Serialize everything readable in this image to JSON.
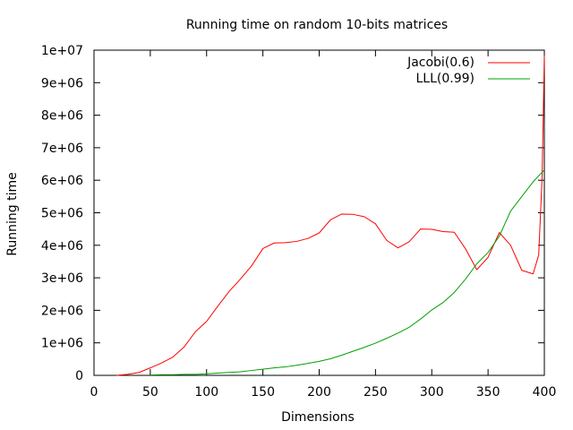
{
  "chart_data": {
    "type": "line",
    "title": "Running time on random 10-bits matrices",
    "xlabel": "Dimensions",
    "ylabel": "Running time",
    "xlim": [
      0,
      400
    ],
    "ylim": [
      0,
      10000000
    ],
    "grid": false,
    "legend_position": "top-right",
    "x_ticks": [
      {
        "value": 0,
        "label": "0"
      },
      {
        "value": 50,
        "label": "50"
      },
      {
        "value": 100,
        "label": "100"
      },
      {
        "value": 150,
        "label": "150"
      },
      {
        "value": 200,
        "label": "200"
      },
      {
        "value": 250,
        "label": "250"
      },
      {
        "value": 300,
        "label": "300"
      },
      {
        "value": 350,
        "label": "350"
      },
      {
        "value": 400,
        "label": "400"
      }
    ],
    "y_ticks": [
      {
        "value": 0,
        "label": "0"
      },
      {
        "value": 1000000,
        "label": "1e+06"
      },
      {
        "value": 2000000,
        "label": "2e+06"
      },
      {
        "value": 3000000,
        "label": "3e+06"
      },
      {
        "value": 4000000,
        "label": "4e+06"
      },
      {
        "value": 5000000,
        "label": "5e+06"
      },
      {
        "value": 6000000,
        "label": "6e+06"
      },
      {
        "value": 7000000,
        "label": "7e+06"
      },
      {
        "value": 8000000,
        "label": "8e+06"
      },
      {
        "value": 9000000,
        "label": "9e+06"
      },
      {
        "value": 10000000,
        "label": "1e+07"
      }
    ],
    "series": [
      {
        "name": "Jacobi(0.6)",
        "color": "#ff0000",
        "points": [
          [
            20,
            0
          ],
          [
            30,
            30000
          ],
          [
            40,
            90000
          ],
          [
            50,
            230000
          ],
          [
            60,
            380000
          ],
          [
            70,
            560000
          ],
          [
            80,
            870000
          ],
          [
            90,
            1340000
          ],
          [
            100,
            1660000
          ],
          [
            110,
            2130000
          ],
          [
            120,
            2580000
          ],
          [
            130,
            2960000
          ],
          [
            140,
            3370000
          ],
          [
            150,
            3900000
          ],
          [
            160,
            4070000
          ],
          [
            170,
            4080000
          ],
          [
            180,
            4120000
          ],
          [
            190,
            4210000
          ],
          [
            200,
            4380000
          ],
          [
            210,
            4780000
          ],
          [
            220,
            4960000
          ],
          [
            230,
            4950000
          ],
          [
            240,
            4880000
          ],
          [
            250,
            4660000
          ],
          [
            260,
            4150000
          ],
          [
            270,
            3920000
          ],
          [
            280,
            4110000
          ],
          [
            290,
            4500000
          ],
          [
            300,
            4490000
          ],
          [
            310,
            4420000
          ],
          [
            320,
            4400000
          ],
          [
            330,
            3890000
          ],
          [
            340,
            3250000
          ],
          [
            350,
            3630000
          ],
          [
            360,
            4390000
          ],
          [
            370,
            4000000
          ],
          [
            380,
            3230000
          ],
          [
            390,
            3120000
          ],
          [
            395,
            3700000
          ],
          [
            398,
            6100000
          ],
          [
            400,
            9830000
          ]
        ]
      },
      {
        "name": "LLL(0.99)",
        "color": "#00a000",
        "points": [
          [
            50,
            10000
          ],
          [
            60,
            20000
          ],
          [
            70,
            20000
          ],
          [
            80,
            30000
          ],
          [
            90,
            30000
          ],
          [
            100,
            50000
          ],
          [
            110,
            70000
          ],
          [
            120,
            90000
          ],
          [
            130,
            110000
          ],
          [
            140,
            150000
          ],
          [
            150,
            190000
          ],
          [
            160,
            230000
          ],
          [
            170,
            260000
          ],
          [
            180,
            310000
          ],
          [
            190,
            370000
          ],
          [
            200,
            430000
          ],
          [
            210,
            510000
          ],
          [
            220,
            620000
          ],
          [
            230,
            740000
          ],
          [
            240,
            860000
          ],
          [
            250,
            990000
          ],
          [
            260,
            1140000
          ],
          [
            270,
            1300000
          ],
          [
            280,
            1480000
          ],
          [
            290,
            1730000
          ],
          [
            300,
            2010000
          ],
          [
            310,
            2240000
          ],
          [
            320,
            2550000
          ],
          [
            330,
            2960000
          ],
          [
            340,
            3430000
          ],
          [
            350,
            3780000
          ],
          [
            360,
            4280000
          ],
          [
            370,
            5050000
          ],
          [
            380,
            5500000
          ],
          [
            390,
            5950000
          ],
          [
            400,
            6320000
          ]
        ]
      }
    ]
  }
}
